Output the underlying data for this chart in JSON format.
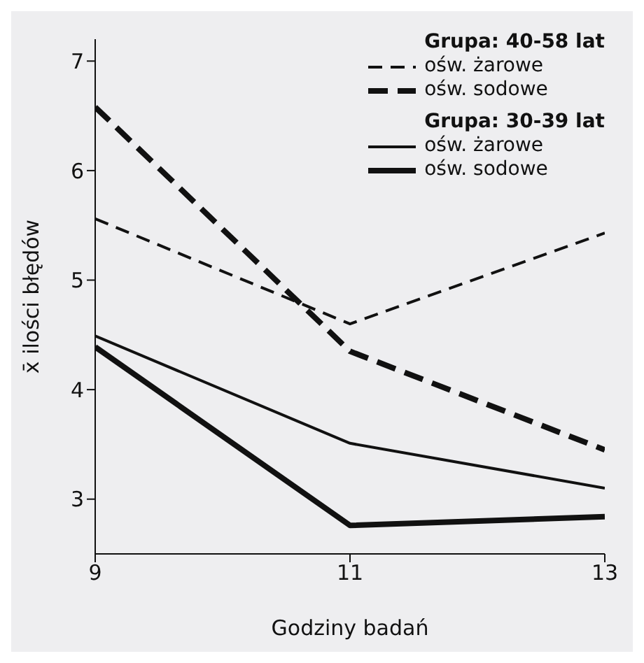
{
  "chart_data": {
    "type": "line",
    "xlabel": "Godziny badań",
    "ylabel": "x̄ ilości błędów",
    "x": [
      9,
      11,
      13
    ],
    "series": [
      {
        "name": "ośw. żarowe",
        "color": "#111111",
        "line_style": "dashed",
        "values": [
          5.56,
          4.6,
          5.43
        ]
      },
      {
        "name": "ośw. sodowe",
        "color": "#111111",
        "line_style": "dashed",
        "values": [
          6.58,
          4.35,
          3.45
        ]
      },
      {
        "name": "ośw. żarowe",
        "color": "#111111",
        "line_style": "solid",
        "values": [
          4.49,
          3.51,
          3.1
        ]
      },
      {
        "name": "ośw. sodowe",
        "color": "#111111",
        "line_style": "solid",
        "values": [
          4.39,
          2.76,
          2.84
        ]
      }
    ],
    "annotations": [
      "Grupa: 40-58 lat",
      "Grupa: 30-39 lat"
    ],
    "xlim": [
      9,
      13
    ],
    "xticks": [
      9,
      11,
      13
    ],
    "ylim": [
      2.5,
      7.2
    ],
    "yticks": [
      3,
      4,
      5,
      6,
      7
    ],
    "grid": false,
    "legend": "top right",
    "marker": "none"
  }
}
